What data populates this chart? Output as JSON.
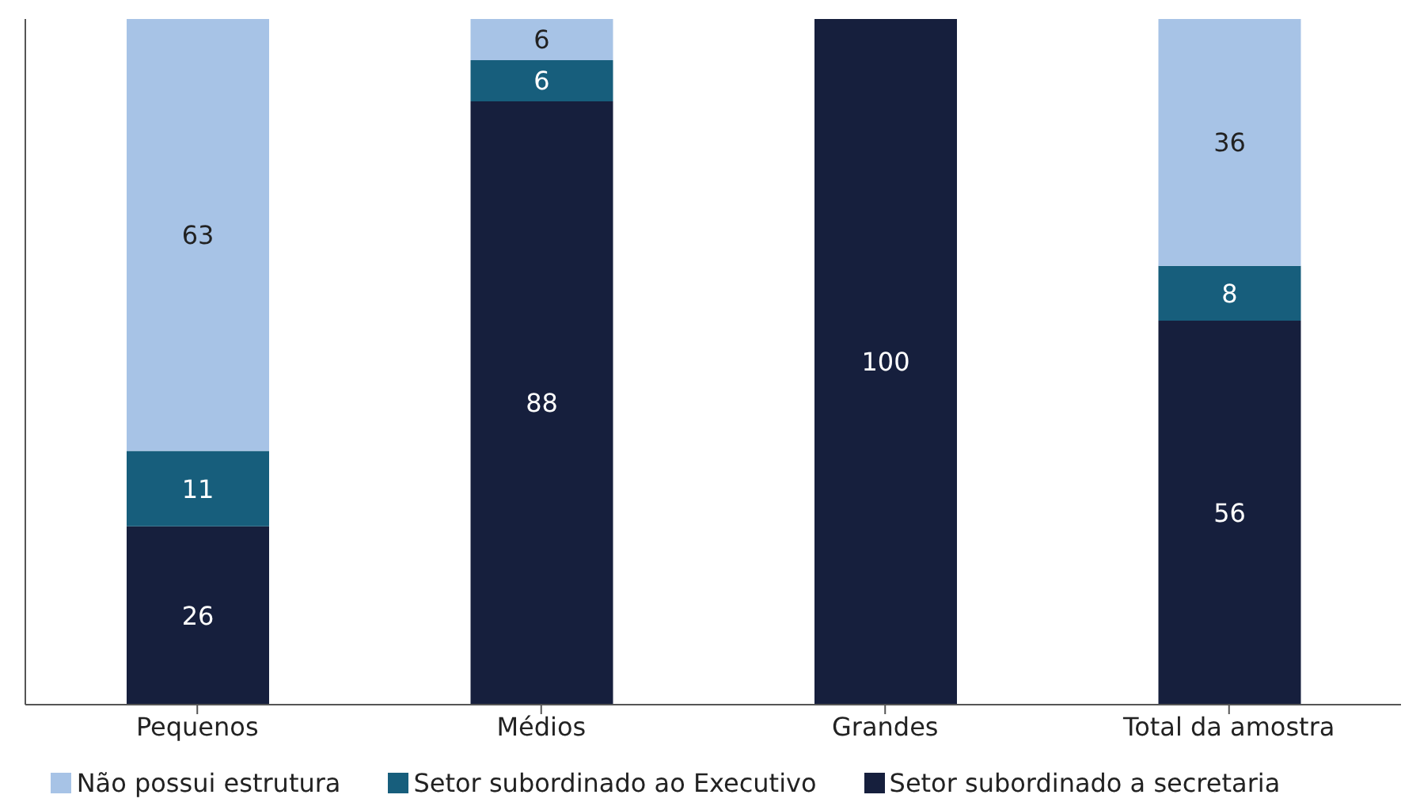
{
  "chart_data": {
    "type": "bar",
    "stacked": true,
    "categories": [
      "Pequenos",
      "Médios",
      "Grandes",
      "Total da amostra"
    ],
    "series": [
      {
        "name": "Setor subordinado a secretaria",
        "color": "#161f3d",
        "values": [
          26,
          88,
          100,
          56
        ]
      },
      {
        "name": "Setor subordinado ao Executivo",
        "color": "#175e7c",
        "values": [
          11,
          6,
          null,
          8
        ]
      },
      {
        "name": "Não possui estrutura",
        "color": "#a7c3e6",
        "values": [
          63,
          6,
          null,
          36
        ]
      }
    ],
    "ylim": [
      0,
      100
    ],
    "tick_labels": "x",
    "data_labels": true,
    "legend": "bottom"
  }
}
